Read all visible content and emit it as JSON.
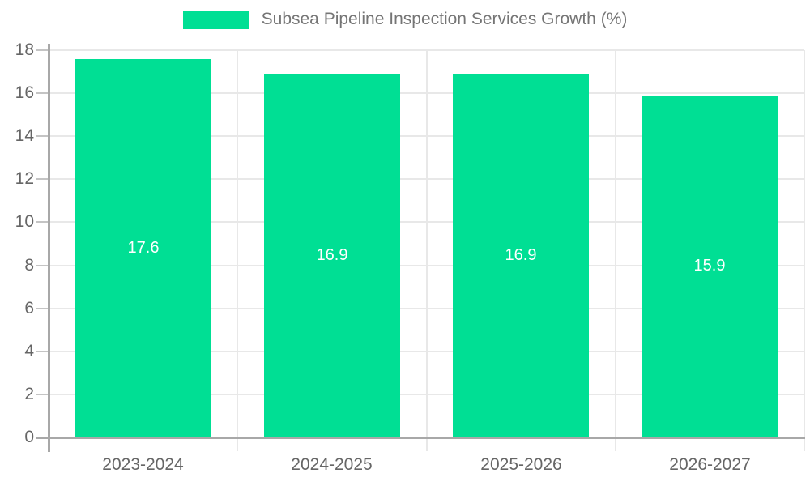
{
  "chart_data": {
    "type": "bar",
    "title": "Subsea Pipeline Inspection Services Growth (%)",
    "categories": [
      "2023-2024",
      "2024-2025",
      "2025-2026",
      "2026-2027"
    ],
    "values": [
      17.6,
      16.9,
      16.9,
      15.9
    ],
    "data_labels": [
      "17.6",
      "16.9",
      "16.9",
      "15.9"
    ],
    "xlabel": "",
    "ylabel": "",
    "ylim": [
      0,
      18
    ],
    "yticks": [
      0,
      2,
      4,
      6,
      8,
      10,
      12,
      14,
      16,
      18
    ],
    "grid": true,
    "legend_position": "top-center",
    "colors": {
      "bar": "#00df94",
      "grid": "#e8e8e8",
      "axis": "#a8a8a8",
      "tick": "#c4c4c4",
      "tick_label": "#666666",
      "legend_text": "#757575",
      "data_label": "#ffffff",
      "background": "#ffffff"
    }
  }
}
